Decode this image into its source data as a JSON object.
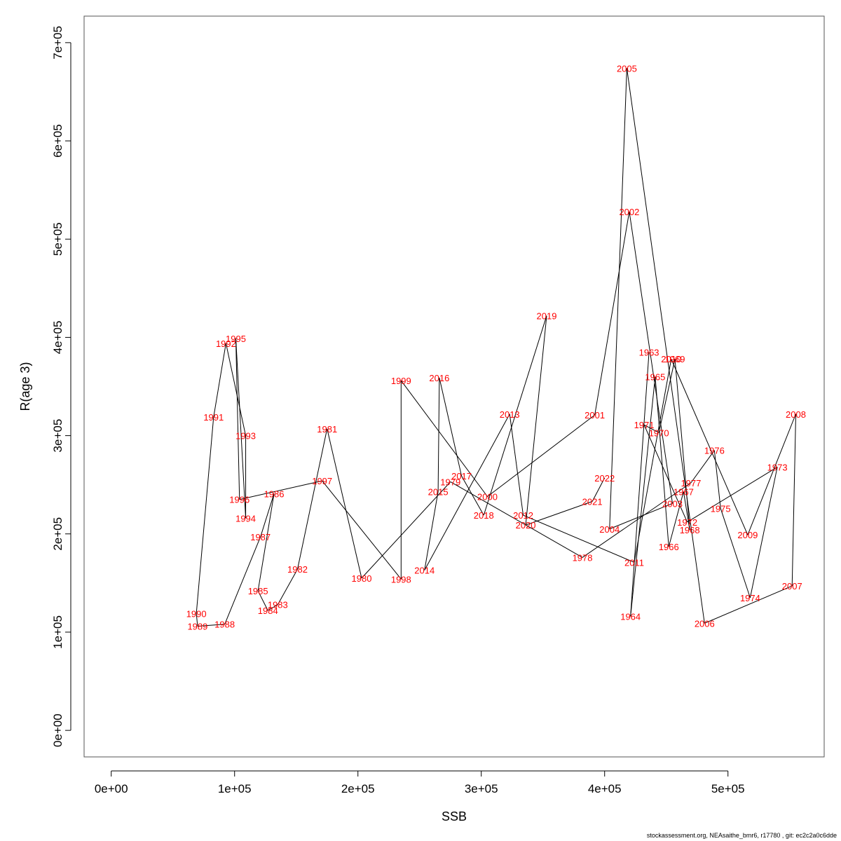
{
  "chart_data": {
    "type": "line",
    "xlabel": "SSB",
    "ylabel": "R(age 3)",
    "xlim": [
      -22000,
      578000
    ],
    "ylim": [
      -27000,
      727000
    ],
    "x_ticks": [
      0,
      100000,
      200000,
      300000,
      400000,
      500000
    ],
    "x_tick_labels": [
      "0e+00",
      "1e+05",
      "2e+05",
      "3e+05",
      "4e+05",
      "5e+05"
    ],
    "y_ticks": [
      0,
      100000,
      200000,
      300000,
      400000,
      500000,
      600000,
      700000
    ],
    "y_tick_labels": [
      "0e+00",
      "1e+05",
      "2e+05",
      "3e+05",
      "4e+05",
      "5e+05",
      "6e+05",
      "7e+05"
    ],
    "grid": false,
    "legend": "none",
    "line_color": "#000000",
    "label_color": "#ff0000",
    "points": [
      {
        "year": "1963",
        "ssb": 436000,
        "r": 385000
      },
      {
        "year": "1964",
        "ssb": 421000,
        "r": 116000
      },
      {
        "year": "1965",
        "ssb": 441000,
        "r": 360000
      },
      {
        "year": "1966",
        "ssb": 452000,
        "r": 187000
      },
      {
        "year": "1967",
        "ssb": 464000,
        "r": 243000
      },
      {
        "year": "1968",
        "ssb": 469000,
        "r": 204000
      },
      {
        "year": "1969",
        "ssb": 457000,
        "r": 378000
      },
      {
        "year": "1970",
        "ssb": 444000,
        "r": 303000
      },
      {
        "year": "1971",
        "ssb": 432000,
        "r": 311000
      },
      {
        "year": "1972",
        "ssb": 467000,
        "r": 212000
      },
      {
        "year": "1973",
        "ssb": 540000,
        "r": 268000
      },
      {
        "year": "1974",
        "ssb": 518000,
        "r": 135000
      },
      {
        "year": "1975",
        "ssb": 494000,
        "r": 226000
      },
      {
        "year": "1976",
        "ssb": 489000,
        "r": 285000
      },
      {
        "year": "1977",
        "ssb": 470000,
        "r": 252000
      },
      {
        "year": "1978",
        "ssb": 382000,
        "r": 176000
      },
      {
        "year": "1979",
        "ssb": 275000,
        "r": 253000
      },
      {
        "year": "1980",
        "ssb": 203000,
        "r": 155000
      },
      {
        "year": "1981",
        "ssb": 175000,
        "r": 307000
      },
      {
        "year": "1982",
        "ssb": 151000,
        "r": 164000
      },
      {
        "year": "1983",
        "ssb": 135000,
        "r": 128000
      },
      {
        "year": "1984",
        "ssb": 127000,
        "r": 122000
      },
      {
        "year": "1985",
        "ssb": 119000,
        "r": 142000
      },
      {
        "year": "1986",
        "ssb": 132000,
        "r": 241000
      },
      {
        "year": "1987",
        "ssb": 121000,
        "r": 197000
      },
      {
        "year": "1988",
        "ssb": 92000,
        "r": 108000
      },
      {
        "year": "1989",
        "ssb": 70000,
        "r": 106000
      },
      {
        "year": "1990",
        "ssb": 69000,
        "r": 119000
      },
      {
        "year": "1991",
        "ssb": 83000,
        "r": 319000
      },
      {
        "year": "1992",
        "ssb": 93000,
        "r": 394000
      },
      {
        "year": "1993",
        "ssb": 109000,
        "r": 300000
      },
      {
        "year": "1994",
        "ssb": 109000,
        "r": 216000
      },
      {
        "year": "1995",
        "ssb": 101000,
        "r": 399000
      },
      {
        "year": "1996",
        "ssb": 104000,
        "r": 235000
      },
      {
        "year": "1997",
        "ssb": 171000,
        "r": 254000
      },
      {
        "year": "1998",
        "ssb": 235000,
        "r": 154000
      },
      {
        "year": "1999",
        "ssb": 235000,
        "r": 356000
      },
      {
        "year": "2000",
        "ssb": 305000,
        "r": 238000
      },
      {
        "year": "2001",
        "ssb": 392000,
        "r": 321000
      },
      {
        "year": "2002",
        "ssb": 420000,
        "r": 528000
      },
      {
        "year": "2003",
        "ssb": 455000,
        "r": 231000
      },
      {
        "year": "2004",
        "ssb": 404000,
        "r": 205000
      },
      {
        "year": "2005",
        "ssb": 418000,
        "r": 674000
      },
      {
        "year": "2006",
        "ssb": 481000,
        "r": 109000
      },
      {
        "year": "2007",
        "ssb": 552000,
        "r": 147000
      },
      {
        "year": "2008",
        "ssb": 555000,
        "r": 322000
      },
      {
        "year": "2009",
        "ssb": 516000,
        "r": 199000
      },
      {
        "year": "2010",
        "ssb": 454000,
        "r": 378000
      },
      {
        "year": "2011",
        "ssb": 424000,
        "r": 171000
      },
      {
        "year": "2012",
        "ssb": 334000,
        "r": 219000
      },
      {
        "year": "2013",
        "ssb": 323000,
        "r": 322000
      },
      {
        "year": "2014",
        "ssb": 254000,
        "r": 163000
      },
      {
        "year": "2015",
        "ssb": 265000,
        "r": 243000
      },
      {
        "year": "2016",
        "ssb": 266000,
        "r": 359000
      },
      {
        "year": "2017",
        "ssb": 284000,
        "r": 259000
      },
      {
        "year": "2018",
        "ssb": 302000,
        "r": 219000
      },
      {
        "year": "2019",
        "ssb": 353000,
        "r": 422000
      },
      {
        "year": "2020",
        "ssb": 336000,
        "r": 209000
      },
      {
        "year": "2021",
        "ssb": 390000,
        "r": 233000
      },
      {
        "year": "2022",
        "ssb": 400000,
        "r": 257000
      }
    ]
  },
  "footer": "stockassessment.org, NEAsaithe_bmr6, r17780 , git: ec2c2a0c6dde"
}
